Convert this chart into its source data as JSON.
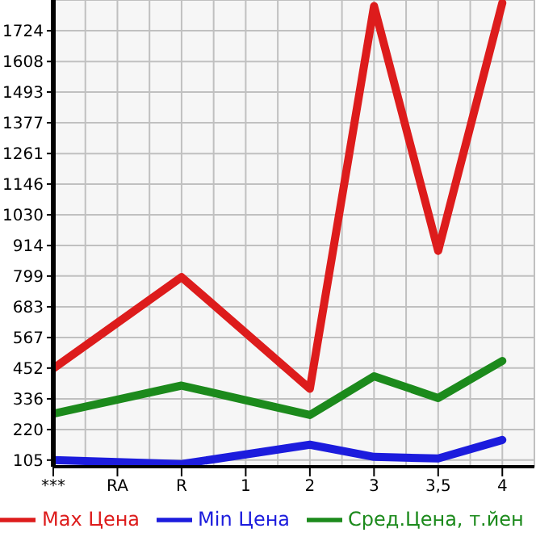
{
  "chart_data": {
    "type": "line",
    "categories": [
      "***",
      "RA",
      "R",
      "1",
      "2",
      "3",
      "3,5",
      "4"
    ],
    "series": [
      {
        "name": "Max Цена",
        "color": "#dd1c1c",
        "values": [
          450,
          null,
          795,
          null,
          374,
          1817,
          894,
          1829
        ]
      },
      {
        "name": "Min Цена",
        "color": "#1c1cdd",
        "values": [
          105,
          null,
          90,
          null,
          163,
          117,
          111,
          181
        ]
      },
      {
        "name": "Сред.Цена, т.йен",
        "color": "#1c8a1c",
        "values": [
          280,
          null,
          386,
          null,
          275,
          421,
          339,
          479
        ]
      }
    ],
    "ylim": [
      80,
      1840
    ],
    "yticks": [
      105,
      220,
      336,
      452,
      567,
      683,
      799,
      914,
      1030,
      1146,
      1261,
      1377,
      1493,
      1608,
      1724
    ],
    "grid": true,
    "legend": "bottom",
    "marker": "none",
    "line_style": "solid"
  }
}
